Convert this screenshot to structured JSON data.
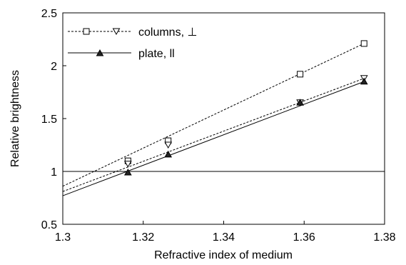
{
  "chart_data": {
    "type": "line",
    "title": "",
    "xlabel": "Refractive index of medium",
    "ylabel": "Relative brightness",
    "xlim": [
      1.3,
      1.38
    ],
    "ylim": [
      0.5,
      2.5
    ],
    "x_ticks": [
      "1.3",
      "1.32",
      "1.34",
      "1.36",
      "1.38"
    ],
    "y_ticks": [
      "0.5",
      "1",
      "1.5",
      "2",
      "2.5"
    ],
    "grid": false,
    "legend_position": "top-left",
    "reference_line": 1.0,
    "series": [
      {
        "name": "columns, ⊥",
        "style": "dashed",
        "marker": "square-open",
        "color": "#000000",
        "points": [
          [
            1.3162,
            1.1
          ],
          [
            1.3262,
            1.29
          ],
          [
            1.359,
            1.92
          ],
          [
            1.3749,
            2.21
          ]
        ],
        "fit": [
          [
            1.3,
            0.86
          ],
          [
            1.3749,
            2.21
          ]
        ]
      },
      {
        "name": "",
        "style": "dashed",
        "marker": "triangle-down-open",
        "color": "#000000",
        "points": [
          [
            1.3162,
            1.07
          ],
          [
            1.3262,
            1.25
          ],
          [
            1.359,
            1.65
          ],
          [
            1.3749,
            1.88
          ]
        ],
        "fit": [
          [
            1.3,
            0.81
          ],
          [
            1.3749,
            1.88
          ]
        ]
      },
      {
        "name": "plate, ll",
        "style": "solid",
        "marker": "triangle-up-filled",
        "color": "#000000",
        "points": [
          [
            1.3162,
            0.99
          ],
          [
            1.3262,
            1.16
          ],
          [
            1.359,
            1.65
          ],
          [
            1.3749,
            1.85
          ]
        ],
        "fit": [
          [
            1.3,
            0.77
          ],
          [
            1.3749,
            1.85
          ]
        ]
      }
    ]
  }
}
